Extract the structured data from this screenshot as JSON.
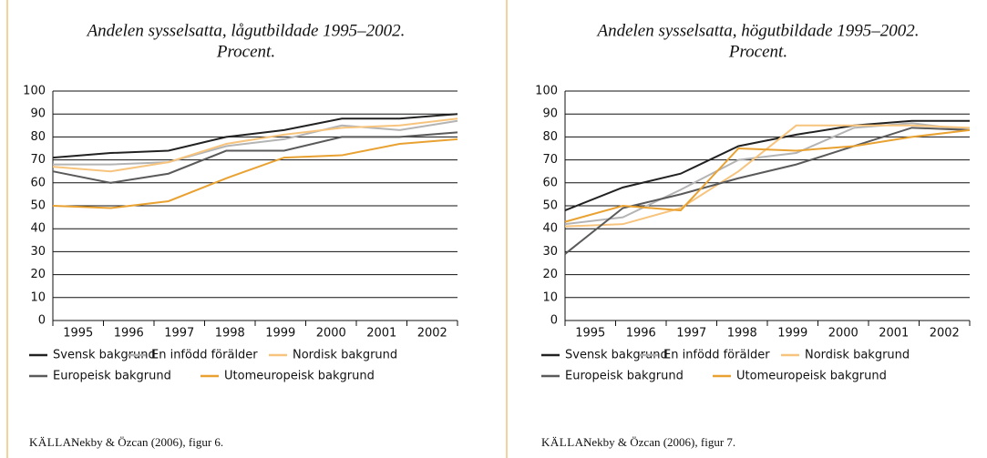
{
  "chart_data": [
    {
      "type": "line",
      "title": "Andelen sysselsatta, lågutbildade 1995–2002.",
      "subtitle": "Procent.",
      "categories": [
        "1995",
        "1996",
        "1997",
        "1998",
        "1999",
        "2000",
        "2001",
        "2002"
      ],
      "ylim": [
        0,
        100
      ],
      "yticks": [
        0,
        10,
        20,
        30,
        40,
        50,
        60,
        70,
        80,
        90,
        100
      ],
      "grid": true,
      "series": [
        {
          "name": "Svensk bakgrund",
          "color": "#222222",
          "values": [
            71,
            73,
            74,
            80,
            83,
            88,
            88,
            90
          ]
        },
        {
          "name": "En infödd förälder",
          "color": "#b4b4b4",
          "values": [
            68,
            68,
            69,
            76,
            79,
            85,
            83,
            87
          ]
        },
        {
          "name": "Nordisk bakgrund",
          "color": "#f7c47e",
          "values": [
            67,
            65,
            69,
            77,
            81,
            84,
            85,
            88
          ]
        },
        {
          "name": "Europeisk bakgrund",
          "color": "#5a5a5a",
          "values": [
            65,
            60,
            64,
            74,
            74,
            80,
            80,
            82
          ]
        },
        {
          "name": "Utomeuropeisk bakgrund",
          "color": "#e9a232",
          "values": [
            50,
            49,
            52,
            62,
            71,
            72,
            77,
            79
          ]
        }
      ],
      "source_label": "KÄLLA:",
      "source": "Nekby & Özcan (2006), figur 6."
    },
    {
      "type": "line",
      "title": "Andelen sysselsatta, högutbildade 1995–2002.",
      "subtitle": "Procent.",
      "categories": [
        "1995",
        "1996",
        "1997",
        "1998",
        "1999",
        "2000",
        "2001",
        "2002"
      ],
      "ylim": [
        0,
        100
      ],
      "yticks": [
        0,
        10,
        20,
        30,
        40,
        50,
        60,
        70,
        80,
        90,
        100
      ],
      "grid": true,
      "series": [
        {
          "name": "Svensk bakgrund",
          "color": "#222222",
          "values": [
            48,
            58,
            64,
            76,
            81,
            85,
            87,
            87
          ]
        },
        {
          "name": "En infödd förälder",
          "color": "#b4b4b4",
          "values": [
            42,
            45,
            57,
            70,
            73,
            84,
            86,
            83
          ]
        },
        {
          "name": "Nordisk bakgrund",
          "color": "#f7c47e",
          "values": [
            41,
            42,
            49,
            65,
            85,
            85,
            85,
            84
          ]
        },
        {
          "name": "Europeisk bakgrund",
          "color": "#5a5a5a",
          "values": [
            29,
            49,
            55,
            62,
            68,
            76,
            84,
            83
          ]
        },
        {
          "name": "Utomeuropeisk bakgrund",
          "color": "#e9a232",
          "values": [
            43,
            50,
            48,
            75,
            74,
            76,
            80,
            83
          ]
        }
      ],
      "source_label": "KÄLLA:",
      "source": "Nekby & Özcan (2006), figur 7."
    }
  ]
}
